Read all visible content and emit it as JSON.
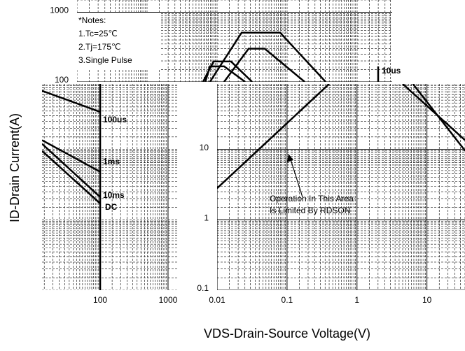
{
  "chart_data": [
    {
      "type": "line",
      "x_label": "VDS-Drain-Source Voltage(V)",
      "y_label": "ID-Drain Current(A)",
      "x_log": true,
      "y_log": true,
      "grid": true,
      "xlim": [
        0.01,
        35
      ],
      "ylim": [
        0.1,
        85
      ],
      "xticks": [
        0.01,
        0.1,
        1,
        10
      ],
      "yticks": [
        0.1,
        1,
        10
      ],
      "annotations": [
        {
          "text": "Operation In This Area"
        },
        {
          "text": "Is Limited By RDSON"
        }
      ],
      "series": [
        {
          "color": "#000000",
          "x": [
            0.01,
            0.4
          ],
          "values": [
            2.8,
            85
          ]
        },
        {
          "color": "#000000",
          "x": [
            4.5,
            35
          ],
          "values": [
            85,
            13.5
          ]
        },
        {
          "color": "#000000",
          "x": [
            6.3,
            35
          ],
          "values": [
            85,
            9.6
          ]
        }
      ]
    },
    {
      "type": "line",
      "x_log": true,
      "y_log": true,
      "grid": true,
      "xlim": [
        13.9,
        1430
      ],
      "ylim": [
        0.1,
        85
      ],
      "xticks": [
        100,
        1000
      ],
      "annotations": [
        {
          "text": "100us"
        },
        {
          "text": "1ms"
        },
        {
          "text": "10ms"
        },
        {
          "text": "DC"
        }
      ],
      "series": [
        {
          "color": "#000000",
          "x": [
            13.9,
            100
          ],
          "values": [
            68,
            34
          ]
        },
        {
          "color": "#000000",
          "x": [
            13.9,
            100
          ],
          "values": [
            13.5,
            4.8
          ]
        },
        {
          "color": "#000000",
          "x": [
            13.9,
            100
          ],
          "values": [
            12,
            2.1
          ]
        },
        {
          "color": "#000000",
          "x": [
            13.9,
            100
          ],
          "values": [
            9.5,
            1.7
          ]
        },
        {
          "color": "#000000",
          "x": [
            100,
            100
          ],
          "values": [
            85,
            0.1
          ]
        }
      ]
    },
    {
      "type": "line",
      "x_log": true,
      "y_log": true,
      "grid": true,
      "xlim": [
        1,
        31623
      ],
      "ylim": [
        100,
        1500
      ],
      "yticks": [
        100,
        1000
      ],
      "notes": [
        "*Notes:",
        "1.Tc=25℃",
        "2.Tj=175℃",
        "3.Single Pulse"
      ],
      "annotations": [
        {
          "text": "10us"
        }
      ],
      "series": [
        {
          "color": "#000000",
          "x": [
            79,
            224,
            794,
            3548
          ],
          "values": [
            100,
            509,
            509,
            100
          ]
        },
        {
          "color": "#000000",
          "x": [
            126,
            282,
            479,
            1778
          ],
          "values": [
            100,
            299,
            299,
            100
          ]
        },
        {
          "color": "#000000",
          "x": [
            63,
            89,
            158,
            316
          ],
          "values": [
            100,
            196,
            196,
            100
          ]
        },
        {
          "color": "#000000",
          "x": [
            68,
            79,
            126,
            251
          ],
          "values": [
            100,
            167,
            167,
            100
          ]
        }
      ]
    }
  ]
}
